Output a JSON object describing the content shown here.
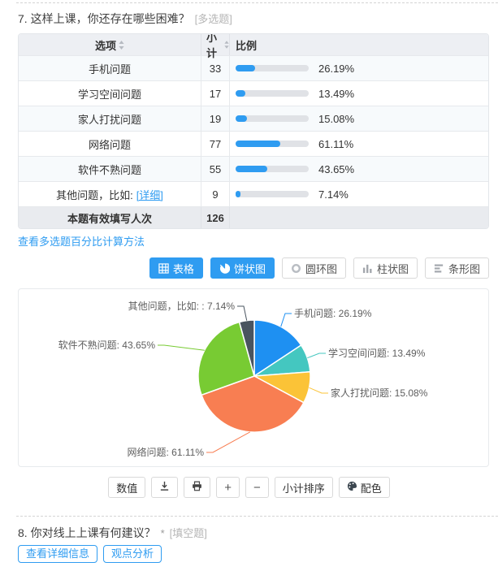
{
  "colors": {
    "accent": "#2f9cf1",
    "bar_fill": "#2f9cf1",
    "bar_track": "#e0e2e6"
  },
  "question7": {
    "title": "7. 这样上课，你还存在哪些困难？",
    "type_tag": "[多选题]",
    "table": {
      "headers": {
        "option": "选项",
        "count": "小计",
        "ratio": "比例"
      },
      "rows": [
        {
          "option": "手机问题",
          "count": "33",
          "percent": "26.19%",
          "pct": 26.19
        },
        {
          "option": "学习空间问题",
          "count": "17",
          "percent": "13.49%",
          "pct": 13.49
        },
        {
          "option": "家人打扰问题",
          "count": "19",
          "percent": "15.08%",
          "pct": 15.08
        },
        {
          "option": "网络问题",
          "count": "77",
          "percent": "61.11%",
          "pct": 61.11
        },
        {
          "option": "软件不熟问题",
          "count": "55",
          "percent": "43.65%",
          "pct": 43.65
        },
        {
          "option": "其他问题，比如:",
          "detail_link": "[详细]",
          "count": "9",
          "percent": "7.14%",
          "pct": 7.14
        }
      ],
      "footer": {
        "label": "本题有效填写人次",
        "count": "126"
      }
    },
    "method_link": "查看多选题百分比计算方法",
    "chart_tabs": [
      {
        "label": "表格",
        "icon": "table-icon",
        "active": true
      },
      {
        "label": "饼状图",
        "icon": "pie-icon",
        "active": true
      },
      {
        "label": "圆环图",
        "icon": "donut-icon",
        "active": false
      },
      {
        "label": "柱状图",
        "icon": "column-icon",
        "active": false
      },
      {
        "label": "条形图",
        "icon": "bar-icon",
        "active": false
      }
    ],
    "toolbar": {
      "value_button": "数值",
      "sort_button": "小计排序",
      "palette_button": "配色"
    }
  },
  "chart_data": {
    "type": "pie",
    "categories": [
      "手机问题",
      "学习空间问题",
      "家人打扰问题",
      "网络问题",
      "软件不熟问题",
      "其他问题，比如:"
    ],
    "values": [
      33,
      17,
      19,
      77,
      55,
      9
    ],
    "percents": [
      26.19,
      13.49,
      15.08,
      61.11,
      43.65,
      7.14
    ],
    "labels": [
      "手机问题: 26.19%",
      "学习空间问题: 13.49%",
      "家人打扰问题: 15.08%",
      "网络问题: 61.11%",
      "软件不熟问题: 43.65%",
      "其他问题，比如: : 7.14%"
    ],
    "colors": [
      "#1e90f2",
      "#44c7c0",
      "#fbc337",
      "#f87e52",
      "#78cb33",
      "#49545f"
    ],
    "legend": "none",
    "title": "",
    "note": "multi-select pie, slices normalized to percents sum 166.66"
  },
  "question8": {
    "title": "8. 你对线上上课有何建议？",
    "required_mark": "*",
    "type_tag": "[填空题]",
    "detail_button": "查看详细信息",
    "analysis_button": "观点分析"
  }
}
